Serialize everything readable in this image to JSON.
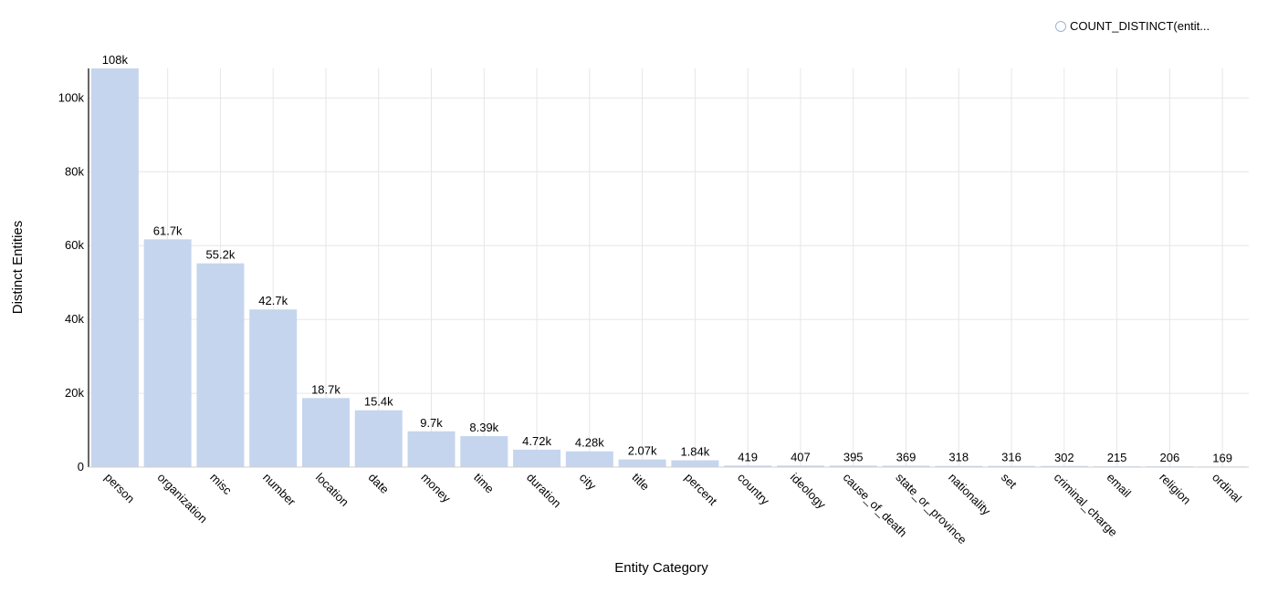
{
  "chart_data": {
    "type": "bar",
    "xlabel": "Entity Category",
    "ylabel": "Distinct Entities",
    "ylim": [
      0,
      108000
    ],
    "yticks": [
      0,
      20000,
      40000,
      60000,
      80000,
      100000
    ],
    "ytick_labels": [
      "0",
      "20k",
      "40k",
      "60k",
      "80k",
      "100k"
    ],
    "grid": true,
    "legend_position": "top-right",
    "categories": [
      "person",
      "organization",
      "misc",
      "number",
      "location",
      "date",
      "money",
      "time",
      "duration",
      "city",
      "title",
      "percent",
      "country",
      "ideology",
      "cause_of_death",
      "state_or_province",
      "nationality",
      "set",
      "criminal_charge",
      "email",
      "religion",
      "ordinal"
    ],
    "series": [
      {
        "name": "COUNT_DISTINCT(entit...",
        "color": "#c5d5ee",
        "values": [
          108000,
          61700,
          55200,
          42700,
          18700,
          15400,
          9700,
          8390,
          4720,
          4280,
          2070,
          1840,
          419,
          407,
          395,
          369,
          318,
          316,
          302,
          215,
          206,
          169
        ],
        "labels": [
          "108k",
          "61.7k",
          "55.2k",
          "42.7k",
          "18.7k",
          "15.4k",
          "9.7k",
          "8.39k",
          "4.72k",
          "4.28k",
          "2.07k",
          "1.84k",
          "419",
          "407",
          "395",
          "369",
          "318",
          "316",
          "302",
          "215",
          "206",
          "169"
        ]
      }
    ]
  }
}
